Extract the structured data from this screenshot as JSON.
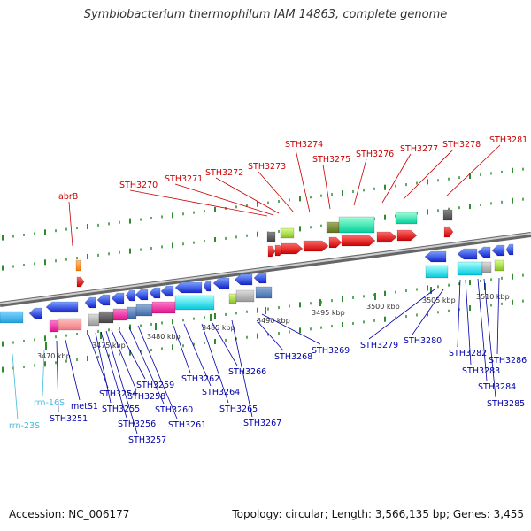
{
  "title": "Symbiobacterium thermophilum IAM 14863, complete genome",
  "accession": "Accession: NC_006177",
  "topology": "Topology: circular; Length: 3,566,135 bp; Genes: 3,455",
  "colors": {
    "backbone": "#8c8c8c",
    "forward_gene": "#ee1111",
    "reverse_gene": "#1133ee",
    "forward_label": "#cc0000",
    "reverse_label": "#0000aa",
    "rna_label": "#44bbdd",
    "tick": "#2e8b2e",
    "scale_text": "#333333"
  },
  "scale_labels": [
    "3470 kbp",
    "3475 kbp",
    "3480 kbp",
    "3485 kbp",
    "3490 kbp",
    "3495 kbp",
    "3500 kbp",
    "3505 kbp",
    "3510 kbp"
  ],
  "gene_labels": [
    "abrB",
    "STH3270",
    "STH3271",
    "STH3272",
    "STH3273",
    "STH3274",
    "STH3275",
    "STH3276",
    "STH3277",
    "STH3278",
    "STH3281",
    "rrn-23S",
    "rrn-16S",
    "STH3251",
    "metS1",
    "STH3254",
    "STH3255",
    "STH3256",
    "STH3257",
    "STH3258",
    "STH3259",
    "STH3260",
    "STH3261",
    "STH3262",
    "STH3264",
    "STH3265",
    "STH3266",
    "STH3267",
    "STH3268",
    "STH3269",
    "STH3279",
    "STH3280",
    "STH3282",
    "STH3283",
    "STH3284",
    "STH3286",
    "STH3285"
  ]
}
